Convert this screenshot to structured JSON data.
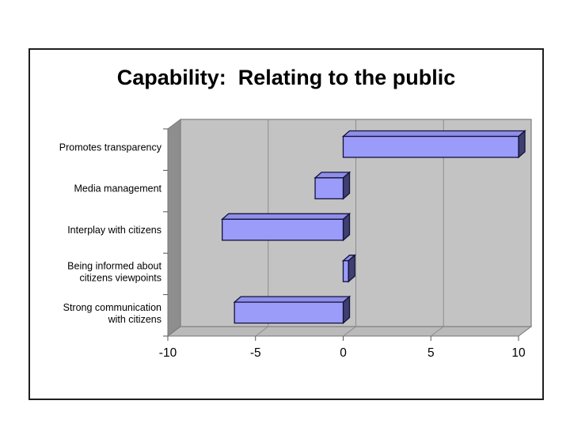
{
  "slide": {
    "title": "Capability:  Relating to the public"
  },
  "chart_data": {
    "type": "bar",
    "orientation": "horizontal",
    "style": "3d",
    "title": "Capability:  Relating to the public",
    "categories": [
      "Promotes transparency",
      "Media management",
      "Interplay with citizens",
      "Being informed about\ncitizens viewpoints",
      "Strong communication\nwith citizens"
    ],
    "values": [
      10,
      -1.6,
      -6.9,
      0.3,
      -6.2
    ],
    "xlabel": "",
    "ylabel": "",
    "xlim": [
      -10,
      10
    ],
    "xticks": [
      -10,
      -5,
      0,
      5,
      10
    ],
    "grid": true,
    "legend": false,
    "colors": {
      "bar_front": "#9b9bfa",
      "bar_top": "#8f8fe8",
      "bar_side": "#3f3f70",
      "bar_outline": "#12123a",
      "wall": "#c3c3c3",
      "wall_side": "#8e8e8e",
      "floor": "#bababa",
      "gridline": "#8c8c8c",
      "tick": "#555555",
      "frame": "#1f1f1f",
      "text": "#000000"
    }
  }
}
